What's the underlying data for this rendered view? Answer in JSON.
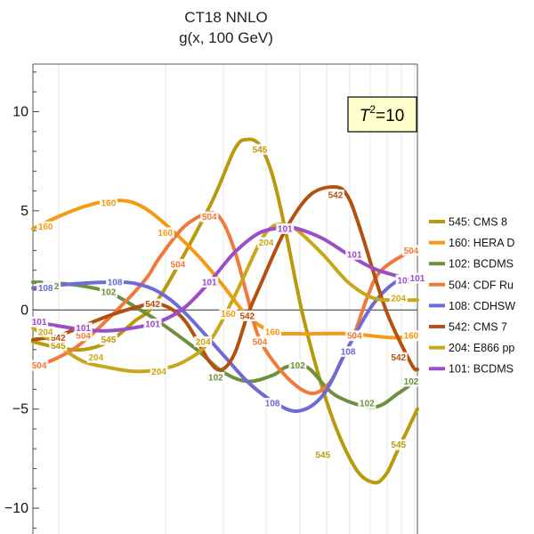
{
  "chart_data": {
    "type": "line",
    "title": "CT18 NNLO",
    "subtitle": "g(x, 100 GeV)",
    "xlabel": "",
    "ylabel": "",
    "ylim": [
      -11.3,
      12.4
    ],
    "y_ticks": [
      10,
      5,
      0,
      -5,
      -10
    ],
    "y_tick_labels": [
      "10",
      "5",
      "0",
      "−5",
      "−10"
    ],
    "grid": true,
    "legend_position": "right",
    "annotation": {
      "text_main": "T",
      "text_sup": "2",
      "text_tail": "=10"
    },
    "x_range": [
      0,
      1
    ],
    "series": [
      {
        "id": "545",
        "name": "545: CMS 8",
        "color": "#b89a0c",
        "x": [
          0.0,
          0.0656,
          0.1311,
          0.1967,
          0.2623,
          0.3279,
          0.459,
          0.5246,
          0.5574,
          0.5902,
          0.623,
          0.6557,
          0.7049,
          0.7705,
          0.8361,
          0.8852,
          0.918,
          0.9508,
          1.0
        ],
        "y": [
          -1.6,
          -1.9,
          -2.0,
          -1.6,
          -0.6,
          0.6,
          5.2,
          8.1,
          8.6,
          8.3,
          6.8,
          4.1,
          -0.5,
          -5.0,
          -7.9,
          -8.7,
          -8.3,
          -7.0,
          -5.0
        ],
        "labels": [
          [
            0.0656,
            -1.8
          ],
          [
            0.1967,
            -1.5
          ],
          [
            0.5902,
            8.1
          ],
          [
            0.7541,
            -7.3
          ],
          [
            0.9508,
            -6.8
          ]
        ]
      },
      {
        "id": "160",
        "name": "160: HERA D",
        "color": "#f59a15",
        "x": [
          0.0,
          0.0656,
          0.1311,
          0.1967,
          0.2623,
          0.3279,
          0.4262,
          0.4918,
          0.5574,
          0.623,
          0.6885,
          0.8197,
          0.9344,
          1.0
        ],
        "y": [
          4.1,
          4.7,
          5.2,
          5.5,
          5.4,
          4.6,
          2.8,
          1.3,
          -0.3,
          -1.1,
          -1.2,
          -1.2,
          -1.4,
          -1.3
        ],
        "labels": [
          [
            0.0328,
            4.2
          ],
          [
            0.1967,
            5.4
          ],
          [
            0.3443,
            3.9
          ],
          [
            0.5082,
            -0.2
          ],
          [
            0.623,
            -1.1
          ],
          [
            0.9836,
            -1.3
          ]
        ]
      },
      {
        "id": "102",
        "name": "102: BCDMS",
        "color": "#6e8f3c",
        "x": [
          0.0,
          0.0656,
          0.1311,
          0.1967,
          0.2623,
          0.3279,
          0.4262,
          0.4918,
          0.5574,
          0.623,
          0.6557,
          0.6885,
          0.7213,
          0.7869,
          0.8852,
          0.9508,
          1.0
        ],
        "y": [
          1.4,
          1.35,
          1.2,
          0.9,
          0.2,
          -0.6,
          -2.0,
          -3.1,
          -3.6,
          -3.3,
          -2.9,
          -2.8,
          -3.0,
          -4.3,
          -4.9,
          -4.2,
          -3.5
        ],
        "labels": [
          [
            0.0492,
            1.2
          ],
          [
            0.1967,
            0.9
          ],
          [
            0.4754,
            -3.4
          ],
          [
            0.6885,
            -2.8
          ],
          [
            0.8689,
            -4.7
          ],
          [
            0.9836,
            -3.6
          ]
        ]
      },
      {
        "id": "504",
        "name": "504: CDF Ru",
        "color": "#f07a3a",
        "x": [
          0.0,
          0.0656,
          0.1311,
          0.2295,
          0.2951,
          0.3279,
          0.3934,
          0.459,
          0.4918,
          0.5246,
          0.5574,
          0.5902,
          0.6557,
          0.7213,
          0.7705,
          0.8033,
          0.8361,
          0.8689,
          0.9016,
          0.9672,
          1.0
        ],
        "y": [
          -2.9,
          -2.4,
          -1.6,
          0.2,
          1.6,
          2.6,
          4.2,
          4.9,
          4.5,
          3.0,
          0.7,
          -1.5,
          -3.3,
          -4.2,
          -3.7,
          -2.5,
          -1.2,
          0.6,
          1.9,
          2.8,
          2.9
        ],
        "labels": [
          [
            0.0164,
            -2.8
          ],
          [
            0.1311,
            -1.3
          ],
          [
            0.377,
            2.3
          ],
          [
            0.459,
            4.7
          ],
          [
            0.5902,
            -1.6
          ],
          [
            0.8361,
            -1.3
          ],
          [
            0.9836,
            3.0
          ]
        ]
      },
      {
        "id": "108",
        "name": "108: CDHSW",
        "color": "#6e6ad6",
        "x": [
          0.0,
          0.0656,
          0.1311,
          0.1967,
          0.2623,
          0.3279,
          0.3934,
          0.4918,
          0.5574,
          0.623,
          0.6885,
          0.7541,
          0.8197,
          0.8852,
          0.9508,
          1.0
        ],
        "y": [
          1.1,
          1.25,
          1.35,
          1.4,
          1.35,
          0.9,
          -0.1,
          -2.2,
          -3.6,
          -4.6,
          -5.1,
          -4.3,
          -1.9,
          0.3,
          1.5,
          1.6
        ],
        "labels": [
          [
            0.0328,
            1.1
          ],
          [
            0.2131,
            1.4
          ],
          [
            0.623,
            -4.7
          ],
          [
            0.8197,
            -2.1
          ],
          [
            0.9672,
            1.5
          ]
        ]
      },
      {
        "id": "542",
        "name": "542: CMS 7",
        "color": "#b5510f",
        "x": [
          0.0,
          0.0656,
          0.1311,
          0.1967,
          0.2623,
          0.3279,
          0.3934,
          0.459,
          0.4918,
          0.5246,
          0.5574,
          0.5902,
          0.6557,
          0.7213,
          0.7869,
          0.8197,
          0.8525,
          0.918,
          0.9836,
          1.0
        ],
        "y": [
          -1.5,
          -1.3,
          -0.8,
          -0.3,
          0.1,
          0.3,
          -0.5,
          -2.6,
          -3.0,
          -2.2,
          -0.3,
          1.2,
          4.0,
          5.8,
          6.2,
          5.7,
          4.0,
          0.0,
          -2.7,
          -3.0
        ],
        "labels": [
          [
            0.0656,
            -1.4
          ],
          [
            0.3115,
            0.3
          ],
          [
            0.5574,
            -0.3
          ],
          [
            0.7869,
            5.8
          ],
          [
            0.9508,
            -2.4
          ]
        ]
      },
      {
        "id": "204",
        "name": "204: E866 pp",
        "color": "#c8a81a",
        "x": [
          0.0,
          0.0656,
          0.1311,
          0.1967,
          0.2623,
          0.3279,
          0.3934,
          0.459,
          0.5246,
          0.5902,
          0.623,
          0.6557,
          0.6885,
          0.7541,
          0.8197,
          0.8852,
          0.9508,
          1.0
        ],
        "y": [
          -0.9,
          -1.8,
          -2.6,
          -2.9,
          -3.1,
          -3.0,
          -2.6,
          -1.6,
          0.7,
          3.4,
          4.2,
          4.3,
          4.0,
          2.8,
          1.4,
          0.6,
          0.5,
          0.5
        ],
        "labels": [
          [
            0.0328,
            -1.1
          ],
          [
            0.1639,
            -2.4
          ],
          [
            0.3279,
            -3.1
          ],
          [
            0.4426,
            -1.6
          ],
          [
            0.6066,
            3.4
          ],
          [
            0.9508,
            0.6
          ]
        ]
      },
      {
        "id": "101",
        "name": "101: BCDMS",
        "color": "#9a4fc6",
        "x": [
          0.0,
          0.0656,
          0.1311,
          0.1967,
          0.2623,
          0.3279,
          0.3934,
          0.459,
          0.5246,
          0.5902,
          0.6557,
          0.6885,
          0.7541,
          0.8197,
          0.8852,
          0.9508,
          1.0
        ],
        "y": [
          -0.6,
          -0.8,
          -1.0,
          -1.05,
          -0.9,
          -0.6,
          0.1,
          1.4,
          2.9,
          3.9,
          4.15,
          4.1,
          3.6,
          2.8,
          2.1,
          1.7,
          1.5
        ],
        "labels": [
          [
            0.0164,
            -0.6
          ],
          [
            0.1311,
            -0.9
          ],
          [
            0.3115,
            -0.7
          ],
          [
            0.459,
            1.4
          ],
          [
            0.6557,
            4.1
          ],
          [
            0.8361,
            2.8
          ],
          [
            0.9672,
            1.5
          ],
          [
            1.0,
            1.6
          ]
        ]
      }
    ]
  }
}
